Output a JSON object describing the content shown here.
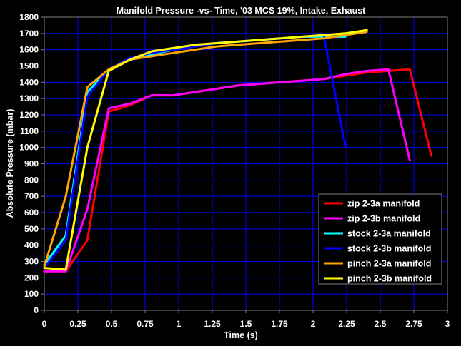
{
  "chart_data": {
    "type": "line",
    "title": "Manifold Pressure -vs- Time, '03 MCS 19%, Intake, Exhaust",
    "xlabel": "Time (s)",
    "ylabel": "Absolute Pressure (mbar)",
    "xlim": [
      0,
      3
    ],
    "ylim": [
      0,
      1800
    ],
    "xticks": [
      "0",
      "0.25",
      "0.5",
      "0.75",
      "1",
      "1.25",
      "1.5",
      "1.75",
      "2",
      "2.25",
      "2.5",
      "2.75",
      "3"
    ],
    "yticks": [
      "0",
      "100",
      "200",
      "300",
      "400",
      "500",
      "600",
      "700",
      "800",
      "900",
      "1000",
      "1100",
      "1200",
      "1300",
      "1400",
      "1500",
      "1600",
      "1700",
      "1800"
    ],
    "grid": true,
    "legend_position": "bottom-right",
    "series": [
      {
        "name": "zip 2-3a manifold",
        "color": "#ff0000",
        "x": [
          0,
          0.16,
          0.32,
          0.48,
          0.64,
          0.8,
          0.96,
          1.12,
          1.28,
          1.44,
          1.6,
          1.76,
          1.92,
          2.08,
          2.24,
          2.4,
          2.56,
          2.72,
          2.88
        ],
        "y": [
          240,
          240,
          430,
          1220,
          1260,
          1320,
          1320,
          1340,
          1360,
          1380,
          1390,
          1400,
          1410,
          1420,
          1440,
          1460,
          1470,
          1480,
          950
        ]
      },
      {
        "name": "zip 2-3b manifold",
        "color": "#ff00ff",
        "x": [
          0,
          0.16,
          0.32,
          0.48,
          0.64,
          0.8,
          0.96,
          1.12,
          1.28,
          1.44,
          1.6,
          1.76,
          1.92,
          2.08,
          2.24,
          2.4,
          2.56,
          2.72
        ],
        "y": [
          240,
          240,
          620,
          1240,
          1270,
          1320,
          1320,
          1340,
          1360,
          1380,
          1390,
          1400,
          1410,
          1420,
          1450,
          1470,
          1480,
          920
        ]
      },
      {
        "name": "stock 2-3a manifold",
        "color": "#00ffff",
        "x": [
          0,
          0.16,
          0.32,
          0.48,
          0.64,
          0.8,
          0.96,
          1.12,
          1.28,
          1.44,
          1.6,
          1.76,
          1.92,
          2.08,
          2.24
        ],
        "y": [
          280,
          460,
          1340,
          1480,
          1540,
          1570,
          1600,
          1620,
          1640,
          1650,
          1660,
          1670,
          1680,
          1680,
          1680
        ]
      },
      {
        "name": "stock 2-3b manifold",
        "color": "#0000ff",
        "x": [
          0,
          0.16,
          0.32,
          0.48,
          0.64,
          0.8,
          0.96,
          1.12,
          1.28,
          1.44,
          1.6,
          1.76,
          1.92,
          2.08,
          2.24
        ],
        "y": [
          260,
          430,
          1310,
          1480,
          1550,
          1580,
          1600,
          1620,
          1640,
          1650,
          1660,
          1670,
          1680,
          1690,
          1010
        ]
      },
      {
        "name": "pinch 2-3a manifold",
        "color": "#ffa500",
        "x": [
          0,
          0.16,
          0.32,
          0.48,
          0.64,
          0.8,
          0.96,
          1.12,
          1.28,
          1.44,
          1.6,
          1.76,
          1.92,
          2.08,
          2.24,
          2.4
        ],
        "y": [
          270,
          700,
          1370,
          1480,
          1540,
          1560,
          1580,
          1600,
          1620,
          1630,
          1640,
          1650,
          1660,
          1670,
          1690,
          1710
        ]
      },
      {
        "name": "pinch 2-3b manifold",
        "color": "#ffff00",
        "x": [
          0,
          0.16,
          0.32,
          0.48,
          0.64,
          0.8,
          0.96,
          1.12,
          1.28,
          1.44,
          1.6,
          1.76,
          1.92,
          2.08,
          2.24,
          2.4
        ],
        "y": [
          260,
          250,
          1000,
          1470,
          1540,
          1590,
          1610,
          1630,
          1640,
          1650,
          1660,
          1670,
          1680,
          1690,
          1700,
          1720
        ]
      }
    ]
  }
}
